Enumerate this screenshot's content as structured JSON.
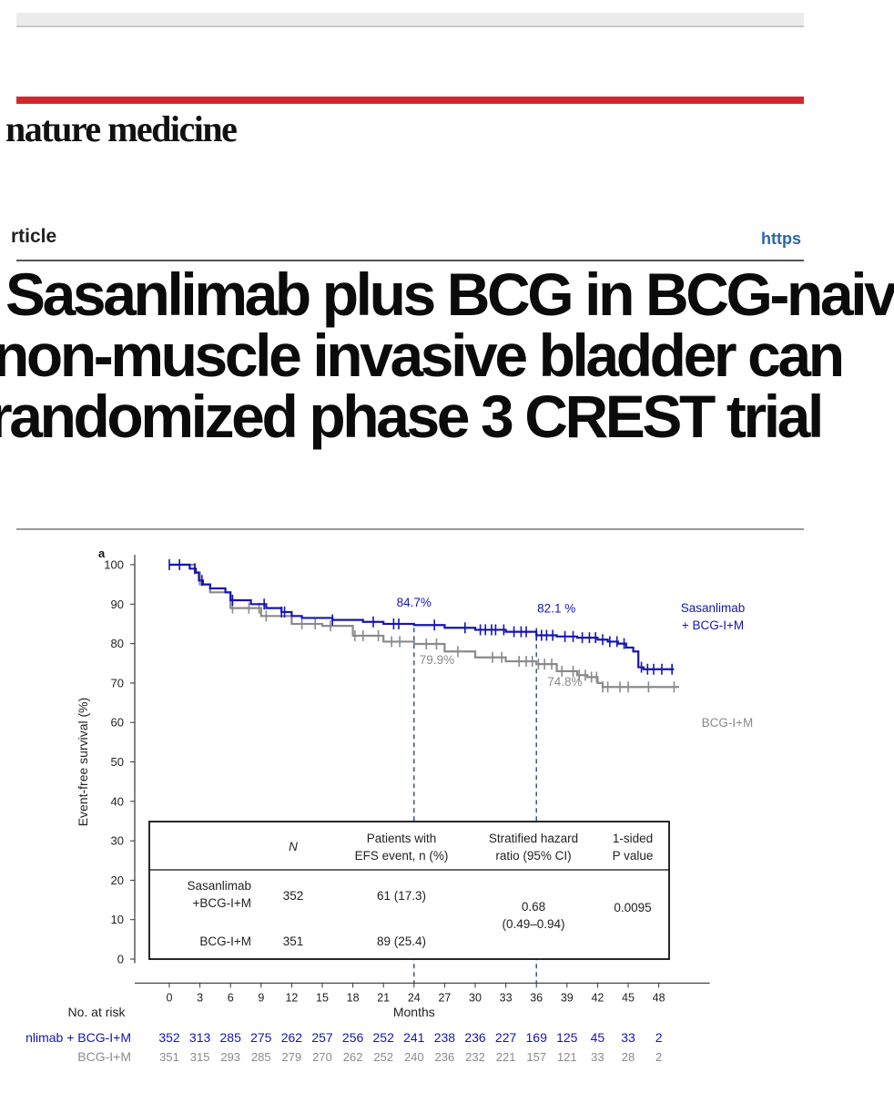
{
  "journal": "nature medicine",
  "header": {
    "section": "rticle",
    "link": "https"
  },
  "title_lines": [
    "Sasanlimab plus BCG in BCG-naiv",
    "non-muscle invasive bladder can",
    "randomized phase 3 CREST trial"
  ],
  "colors": {
    "sasanlimab": "#1515b0",
    "bcg": "#8a8a8a",
    "accent": "#d6262b"
  },
  "chart_data": {
    "type": "line",
    "panel_letter": "a",
    "xlabel": "Months",
    "ylabel": "Event-free survival (%)",
    "x_ticks": [
      0,
      3,
      6,
      9,
      12,
      15,
      18,
      21,
      24,
      27,
      30,
      33,
      36,
      39,
      42,
      45,
      48
    ],
    "y_ticks": [
      0,
      10,
      20,
      30,
      40,
      50,
      60,
      70,
      80,
      90,
      100
    ],
    "xlim": [
      -3,
      53
    ],
    "ylim": [
      0,
      100
    ],
    "series": [
      {
        "name": "Sasanlimab + BCG-I+M",
        "color": "#1515b0",
        "points": [
          [
            0,
            100
          ],
          [
            2,
            99
          ],
          [
            2.6,
            98
          ],
          [
            2.9,
            96
          ],
          [
            3.3,
            95
          ],
          [
            4,
            94
          ],
          [
            5.5,
            93
          ],
          [
            6,
            91
          ],
          [
            8,
            90
          ],
          [
            9.5,
            89
          ],
          [
            11,
            88
          ],
          [
            12,
            87
          ],
          [
            13,
            86.5
          ],
          [
            16,
            86
          ],
          [
            19,
            85.5
          ],
          [
            21,
            85
          ],
          [
            24,
            84.7
          ],
          [
            27,
            84
          ],
          [
            30,
            83.5
          ],
          [
            33,
            83
          ],
          [
            36,
            82.1
          ],
          [
            38,
            81.8
          ],
          [
            40,
            81.5
          ],
          [
            42,
            81
          ],
          [
            43,
            80.5
          ],
          [
            44,
            80
          ],
          [
            44.8,
            79
          ],
          [
            45.5,
            78
          ],
          [
            46,
            74
          ],
          [
            46.5,
            73.5
          ],
          [
            49.5,
            73.5
          ]
        ],
        "censor_x": [
          0,
          1,
          2.5,
          3.2,
          6.2,
          9.3,
          11,
          11.3,
          16,
          20,
          22,
          22.5,
          26,
          29,
          30.5,
          31,
          31.6,
          32,
          32.8,
          33.8,
          34.5,
          35,
          36,
          36.5,
          37,
          37.6,
          38.8,
          39.6,
          40.5,
          41.2,
          41.8,
          42.5,
          43.2,
          43.9,
          44.6,
          46.3,
          46.9,
          47.5,
          48.3,
          49.3
        ],
        "annotations": [
          {
            "x": 24,
            "y": 84.7,
            "text": "84.7%"
          },
          {
            "x": 36,
            "y": 82.1,
            "text": "82.1 %"
          }
        ]
      },
      {
        "name": "BCG-I+M",
        "color": "#8a8a8a",
        "points": [
          [
            0,
            100
          ],
          [
            2.5,
            98
          ],
          [
            3,
            95
          ],
          [
            4,
            93
          ],
          [
            6,
            89
          ],
          [
            9,
            87
          ],
          [
            12,
            85
          ],
          [
            15,
            84.5
          ],
          [
            18,
            82
          ],
          [
            21,
            80.5
          ],
          [
            24,
            79.9
          ],
          [
            27,
            78
          ],
          [
            30,
            76.5
          ],
          [
            33,
            75.5
          ],
          [
            36,
            74.8
          ],
          [
            38,
            73
          ],
          [
            40,
            72
          ],
          [
            41,
            71.5
          ],
          [
            42,
            70
          ],
          [
            42.5,
            69
          ],
          [
            50,
            69
          ]
        ],
        "censor_x": [
          6.2,
          7.8,
          8.8,
          9.5,
          13,
          14.3,
          15.8,
          18.2,
          19,
          20.5,
          21.8,
          22.6,
          25.2,
          26.2,
          28.3,
          31.7,
          32.6,
          34.3,
          35,
          35.6,
          36.2,
          36.8,
          37.5,
          38.5,
          39.6,
          40.2,
          40.8,
          41.4,
          41.9,
          42.5,
          43,
          44.2,
          45,
          47,
          49.5
        ],
        "annotations": [
          {
            "x": 24,
            "y": 79.9,
            "text": "79.9%"
          },
          {
            "x": 36,
            "y": 74.8,
            "text": "74.8%"
          }
        ]
      }
    ],
    "legend": [
      {
        "line1": "Sasanlimab",
        "line2": "+ BCG-I+M",
        "color": "#1515b0"
      },
      {
        "line1": "BCG-I+M",
        "line2": "",
        "color": "#8a8a8a"
      }
    ],
    "reference_x": [
      24,
      36
    ],
    "table": {
      "headers": [
        [
          "",
          ""
        ],
        [
          "N",
          ""
        ],
        [
          "Patients with",
          "EFS event, n (%)"
        ],
        [
          "Stratified hazard",
          "ratio (95% CI)"
        ],
        [
          "1-sided",
          "P value"
        ]
      ],
      "rows": [
        {
          "label": [
            "Sasanlimab",
            "+BCG-I+M"
          ],
          "n": "352",
          "events": "61 (17.3)"
        },
        {
          "label": [
            "BCG-I+M",
            ""
          ],
          "n": "351",
          "events": "89 (25.4)"
        }
      ],
      "hazard_ratio": [
        "0.68",
        "(0.49–0.94)"
      ],
      "p_value": "0.0095"
    },
    "at_risk": {
      "title": "No. at risk",
      "rows": [
        {
          "label": "nlimab + BCG-I+M",
          "color": "#1515b0",
          "values": [
            352,
            313,
            285,
            275,
            262,
            257,
            256,
            252,
            241,
            238,
            236,
            227,
            169,
            125,
            45,
            33,
            2
          ]
        },
        {
          "label": "BCG-I+M",
          "color": "#8a8a8a",
          "values": [
            351,
            315,
            293,
            285,
            279,
            270,
            262,
            252,
            240,
            236,
            232,
            221,
            157,
            121,
            33,
            28,
            2
          ]
        }
      ]
    }
  }
}
